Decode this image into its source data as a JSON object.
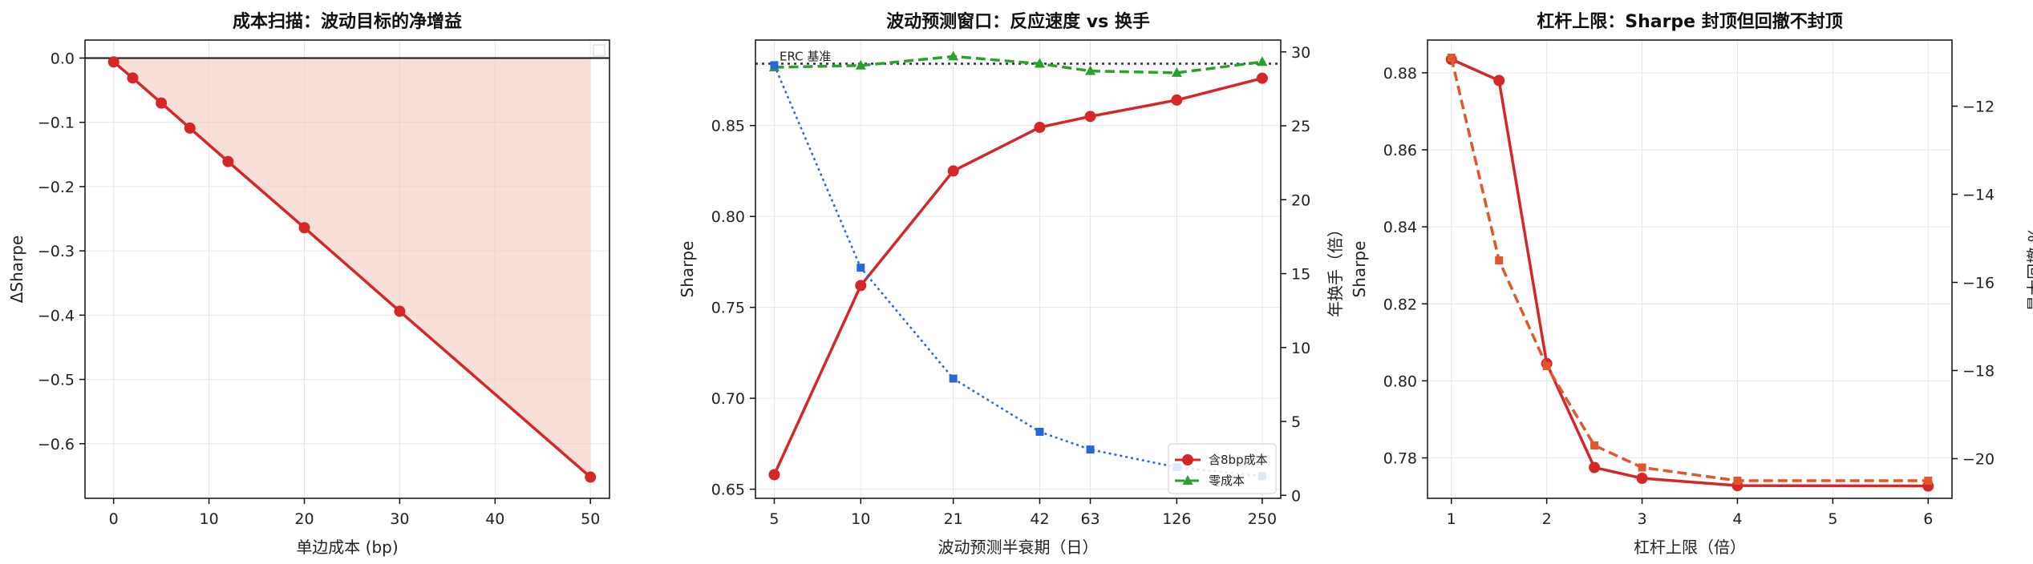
{
  "chart_data": [
    {
      "type": "line",
      "title": "成本扫描：波动目标的净增益",
      "xlabel": "单边成本 (bp)",
      "ylabel": "ΔSharpe",
      "xlim": [
        -3,
        52
      ],
      "ylim": [
        -0.685,
        0.028
      ],
      "xticks": [
        0,
        10,
        20,
        30,
        40,
        50
      ],
      "yticks": [
        0.0,
        -0.1,
        -0.2,
        -0.3,
        -0.4,
        -0.5,
        -0.6
      ],
      "ytick_labels": [
        "0.0",
        "−0.1",
        "−0.2",
        "−0.3",
        "−0.4",
        "−0.5",
        "−0.6"
      ],
      "grid": true,
      "zero_line": true,
      "fill_to_zero": true,
      "series": [
        {
          "color": "#d62728",
          "marker": "circle",
          "line": "solid",
          "x": [
            0,
            2,
            5,
            8,
            12,
            20,
            30,
            50
          ],
          "y": [
            -0.006,
            -0.031,
            -0.07,
            -0.109,
            -0.161,
            -0.264,
            -0.394,
            -0.652
          ]
        }
      ],
      "fill_color": "#f4c9bd"
    },
    {
      "type": "line",
      "title": "波动预测窗口：反应速度 vs 换手",
      "xlabel": "波动预测半衰期（日）",
      "ylabel": "Sharpe",
      "y2label": "年换手（倍）",
      "xscale": "log",
      "xlim": [
        4.3,
        290
      ],
      "ylim": [
        0.645,
        0.897
      ],
      "y2lim": [
        -0.2,
        30.8
      ],
      "xticks": [
        5,
        10,
        21,
        42,
        63,
        126,
        250
      ],
      "yticks": [
        0.65,
        0.7,
        0.75,
        0.8,
        0.85
      ],
      "y2ticks": [
        0,
        5,
        10,
        15,
        20,
        25,
        30
      ],
      "grid": true,
      "legend_position": "bottom-right",
      "reference_line": {
        "label": "ERC 基准",
        "y": 0.884,
        "color": "#1f2d5c"
      },
      "series": [
        {
          "name": "含8bp成本",
          "axis": "left",
          "color": "#d62728",
          "marker": "circle",
          "line": "solid",
          "x": [
            5,
            10,
            21,
            42,
            63,
            126,
            250
          ],
          "y": [
            0.658,
            0.762,
            0.825,
            0.849,
            0.855,
            0.864,
            0.876
          ]
        },
        {
          "name": "零成本",
          "axis": "left",
          "color": "#2ca02c",
          "marker": "triangle",
          "line": "dashed",
          "x": [
            5,
            10,
            21,
            42,
            63,
            126,
            250
          ],
          "y": [
            0.882,
            0.883,
            0.888,
            0.884,
            0.88,
            0.879,
            0.885
          ]
        },
        {
          "name": "",
          "axis": "right",
          "color": "#2a67d6",
          "marker": "square",
          "line": "dotted",
          "x": [
            5,
            10,
            21,
            42,
            63,
            126,
            250
          ],
          "y": [
            29.1,
            15.4,
            7.9,
            4.3,
            3.1,
            1.9,
            1.3
          ]
        }
      ]
    },
    {
      "type": "line",
      "title": "杠杆上限：Sharpe 封顶但回撤不封顶",
      "xlabel": "杠杆上限（倍）",
      "ylabel": "Sharpe",
      "y2label": "最大回撤 %",
      "xlim": [
        0.75,
        6.25
      ],
      "ylim": [
        0.7695,
        0.8885
      ],
      "y2lim": [
        -20.9,
        -10.5
      ],
      "xticks": [
        1,
        2,
        3,
        4,
        5,
        6
      ],
      "yticks": [
        0.78,
        0.8,
        0.82,
        0.84,
        0.86,
        0.88
      ],
      "y2ticks": [
        -12,
        -14,
        -16,
        -18,
        -20
      ],
      "y2tick_labels": [
        "−12",
        "−14",
        "−16",
        "−18",
        "−20"
      ],
      "grid": true,
      "series": [
        {
          "name": "",
          "axis": "left",
          "color": "#d62728",
          "marker": "circle",
          "line": "solid",
          "x": [
            1,
            1.5,
            2,
            2.5,
            3,
            4,
            6
          ],
          "y": [
            0.8835,
            0.878,
            0.8045,
            0.7775,
            0.7747,
            0.7728,
            0.7727
          ]
        },
        {
          "name": "",
          "axis": "right",
          "color": "#e3562a",
          "marker": "square",
          "line": "dashed",
          "x": [
            1,
            1.5,
            2,
            2.5,
            3,
            4,
            6
          ],
          "y": [
            -10.9,
            -15.5,
            -17.9,
            -19.7,
            -20.2,
            -20.5,
            -20.5
          ]
        }
      ]
    }
  ]
}
